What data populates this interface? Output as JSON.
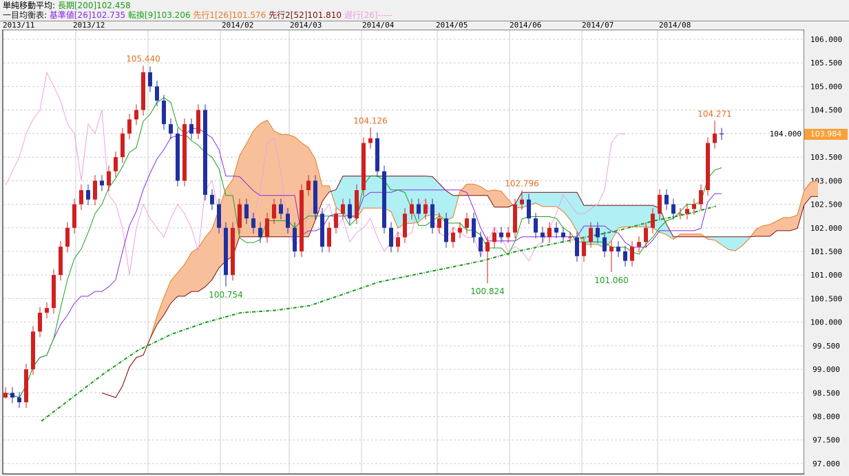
{
  "legend": {
    "sma_label": "単純移動平均:",
    "sma": "長期[200]102.458",
    "ichimoku_label": "一目均衡表:",
    "kijun": "基準値[26]102.735",
    "tenkan": "転換[9]103.206",
    "span1": "先行1[26]101.576",
    "span2": "先行2[52]101.810",
    "chikou": "遅行[26]-----"
  },
  "colors": {
    "up": "#d02020",
    "down": "#2030a0",
    "kijun": "#8a2be2",
    "tenkan": "#1aa31a",
    "span1": "#e87a20",
    "span2": "#7a1010",
    "chikou": "#f0a0e0",
    "sma": "#1a9a1a",
    "cloud_bull": "#f8c09a",
    "cloud_bear": "#b0f0f4",
    "current": "#f7a13a"
  },
  "current_price": "103.984",
  "chart_data": {
    "type": "candlestick",
    "x_ticks": [
      "2013/11",
      "2013/12",
      "2014/02",
      "2014/03",
      "2014/04",
      "2014/05",
      "2014/06",
      "2014/07",
      "2014/08"
    ],
    "y_ticks": [
      "106.000",
      "105.500",
      "105.000",
      "104.500",
      "104.000",
      "103.500",
      "103.000",
      "102.500",
      "102.000",
      "101.500",
      "101.000",
      "100.500",
      "100.000",
      "99.500",
      "99.000",
      "98.500",
      "98.000",
      "97.500",
      "97.000"
    ],
    "ylim": [
      97,
      106
    ],
    "close": [
      98.5,
      98.4,
      98.3,
      99.0,
      99.8,
      100.2,
      100.3,
      101.0,
      101.6,
      102.0,
      102.5,
      102.8,
      102.6,
      103.0,
      102.9,
      103.2,
      103.5,
      104.0,
      104.3,
      104.5,
      105.3,
      105.0,
      104.7,
      104.2,
      104.0,
      103.0,
      104.2,
      104.0,
      104.5,
      102.7,
      102.5,
      102.0,
      101.0,
      102.0,
      102.5,
      102.2,
      102.0,
      101.8,
      102.2,
      102.5,
      102.3,
      102.0,
      101.5,
      102.8,
      103.0,
      102.3,
      101.6,
      102.0,
      102.3,
      102.5,
      102.2,
      102.8,
      103.8,
      103.9,
      103.2,
      102.0,
      101.6,
      101.8,
      102.3,
      102.5,
      102.3,
      102.5,
      102.0,
      102.2,
      101.7,
      101.9,
      102.0,
      102.2,
      101.8,
      101.5,
      101.7,
      101.9,
      101.8,
      101.9,
      102.5,
      102.6,
      102.2,
      101.9,
      101.8,
      102.0,
      101.9,
      101.8,
      101.8,
      101.4,
      101.7,
      102.0,
      101.8,
      101.5,
      101.6,
      101.5,
      101.3,
      101.6,
      101.7,
      102.0,
      102.3,
      102.7,
      102.5,
      102.3,
      102.3,
      102.4,
      102.5,
      102.8,
      103.8,
      104.0,
      103.984
    ],
    "sma200": [
      [
        60,
        97.9
      ],
      [
        150,
        98.9
      ],
      [
        200,
        99.4
      ],
      [
        250,
        99.75
      ],
      [
        300,
        100.0
      ],
      [
        350,
        100.2
      ],
      [
        400,
        100.25
      ],
      [
        450,
        100.35
      ],
      [
        500,
        100.6
      ],
      [
        550,
        100.85
      ],
      [
        600,
        101.0
      ],
      [
        650,
        101.15
      ],
      [
        700,
        101.3
      ],
      [
        750,
        101.5
      ],
      [
        800,
        101.65
      ],
      [
        850,
        101.8
      ],
      [
        900,
        101.95
      ],
      [
        950,
        102.15
      ],
      [
        1000,
        102.3
      ],
      [
        1040,
        102.46
      ]
    ],
    "annotations": [
      {
        "text": "105.440",
        "index": 20,
        "price": 105.44,
        "kind": "high"
      },
      {
        "text": "100.754",
        "index": 32,
        "price": 100.754,
        "kind": "low"
      },
      {
        "text": "104.126",
        "index": 53,
        "price": 104.126,
        "kind": "high"
      },
      {
        "text": "100.824",
        "index": 70,
        "price": 100.824,
        "kind": "low"
      },
      {
        "text": "102.796",
        "index": 75,
        "price": 102.796,
        "kind": "high"
      },
      {
        "text": "101.060",
        "index": 88,
        "price": 101.06,
        "kind": "low"
      },
      {
        "text": "104.271",
        "index": 103,
        "price": 104.271,
        "kind": "high"
      }
    ]
  }
}
